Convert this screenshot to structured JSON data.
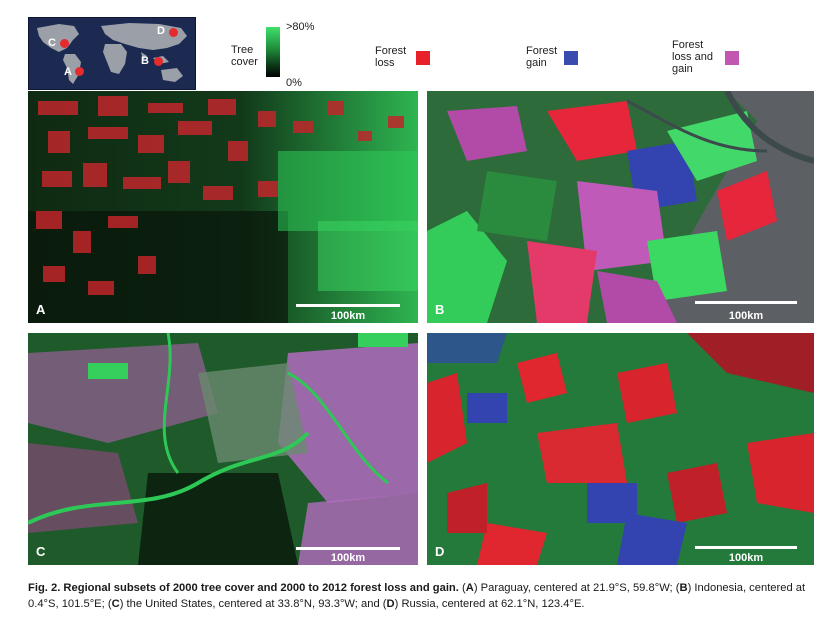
{
  "inset_map": {
    "labels": [
      "C",
      "D",
      "A",
      "B"
    ]
  },
  "legend": {
    "tree_cover_label_1": "Tree",
    "tree_cover_label_2": "cover",
    "tree_cover_max": ">80%",
    "tree_cover_min": "0%",
    "forest_loss_1": "Forest",
    "forest_loss_2": "loss",
    "forest_gain_1": "Forest",
    "forest_gain_2": "gain",
    "forest_lg_1": "Forest",
    "forest_lg_2": "loss and",
    "forest_lg_3": "gain",
    "colors": {
      "loss": "#e8202a",
      "gain": "#3a4bb0",
      "loss_and_gain": "#c157b0"
    }
  },
  "panels": [
    {
      "letter": "A",
      "scale": "100km"
    },
    {
      "letter": "B",
      "scale": "100km"
    },
    {
      "letter": "C",
      "scale": "100km"
    },
    {
      "letter": "D",
      "scale": "100km"
    }
  ],
  "caption": {
    "title": "Fig. 2. Regional subsets of 2000 tree cover and 2000 to 2012 forest loss and gain.",
    "body_a_letter": "A",
    "body_a": " Paraguay, centered at 21.9°S, 59.8°W; (",
    "body_b_letter": "B",
    "body_b": ") Indonesia, centered at 0.4°S, 101.5°E; (",
    "body_c_letter": "C",
    "body_c": ") the United States, centered at 33.8°N, 93.3°W; and (",
    "body_d_letter": "D",
    "body_d": ") Russia, centered at 62.1°N, 123.4°E."
  }
}
